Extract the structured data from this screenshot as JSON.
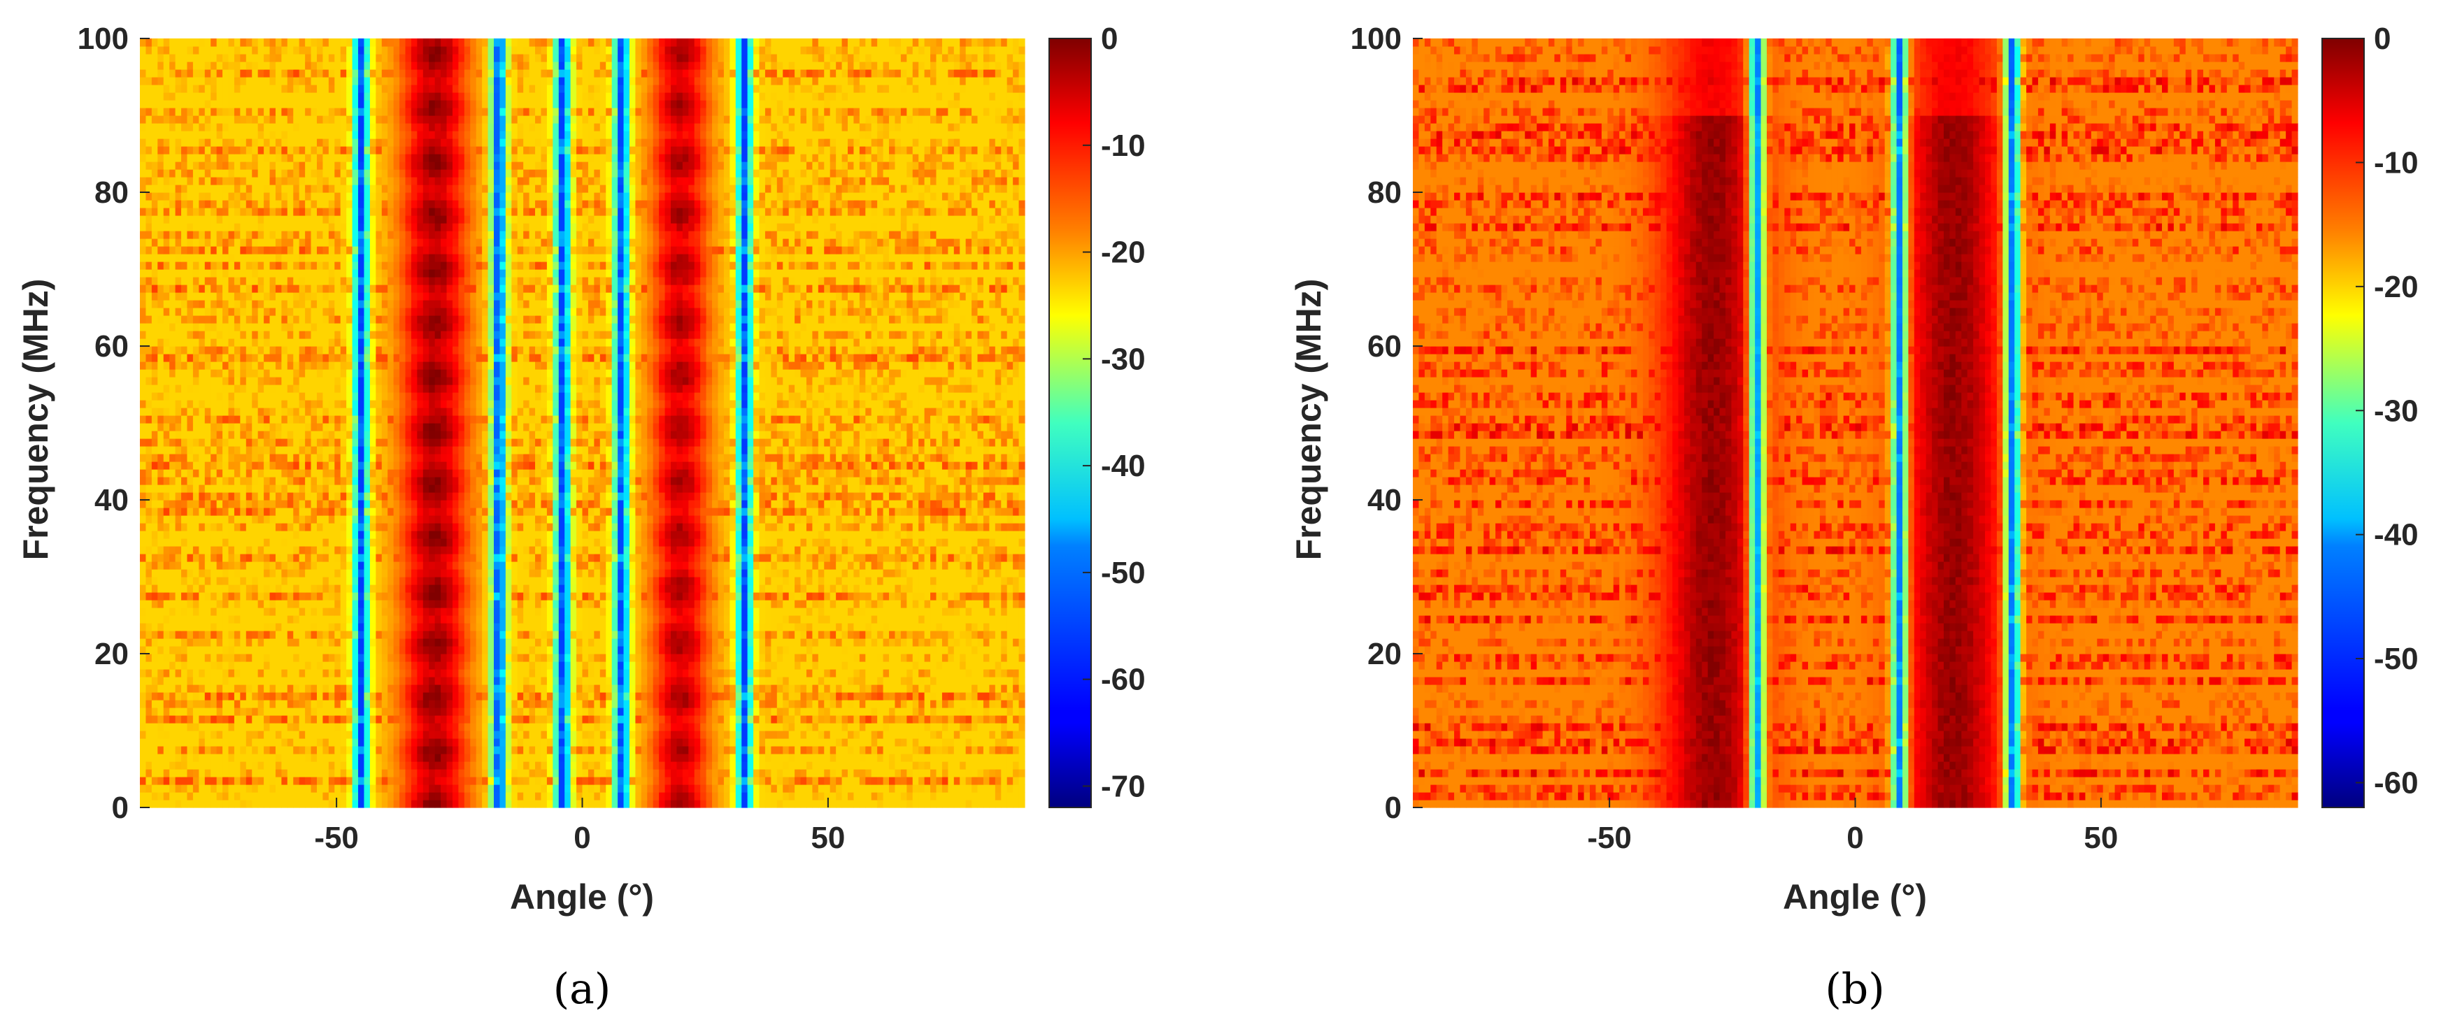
{
  "chart_data": [
    {
      "type": "heatmap",
      "caption": "(a)",
      "xlabel": "Angle (°)",
      "ylabel": "Frequency (MHz)",
      "xlim": [
        -90,
        90
      ],
      "ylim": [
        0,
        100
      ],
      "xticks": [
        -50,
        0,
        50
      ],
      "yticks": [
        0,
        20,
        40,
        60,
        80,
        100
      ],
      "colormap": "jet",
      "colorbar": {
        "min": -72,
        "max": 0,
        "ticks": [
          0,
          -10,
          -20,
          -30,
          -40,
          -50,
          -60,
          -70
        ]
      },
      "sources": [
        {
          "angle": -30,
          "width": 7,
          "peak": -2
        },
        {
          "angle": 20,
          "width": 6,
          "peak": -4
        }
      ],
      "nulls": [
        -45,
        -17,
        -4,
        8,
        33
      ],
      "background_level": -24
    },
    {
      "type": "heatmap",
      "caption": "(b)",
      "xlabel": "Angle (°)",
      "ylabel": "Frequency (MHz)",
      "xlim": [
        -90,
        90
      ],
      "ylim": [
        0,
        100
      ],
      "xticks": [
        -50,
        0,
        50
      ],
      "yticks": [
        0,
        20,
        40,
        60,
        80,
        100
      ],
      "colormap": "jet",
      "colorbar": {
        "min": -62,
        "max": 0,
        "ticks": [
          0,
          -10,
          -20,
          -30,
          -40,
          -50,
          -60
        ]
      },
      "sources": [
        {
          "angle": -29,
          "width": 10,
          "peak": 0
        },
        {
          "angle": 20,
          "width": 10,
          "peak": 0
        }
      ],
      "nulls": [
        -20,
        9,
        32
      ],
      "background_level": -16
    }
  ]
}
